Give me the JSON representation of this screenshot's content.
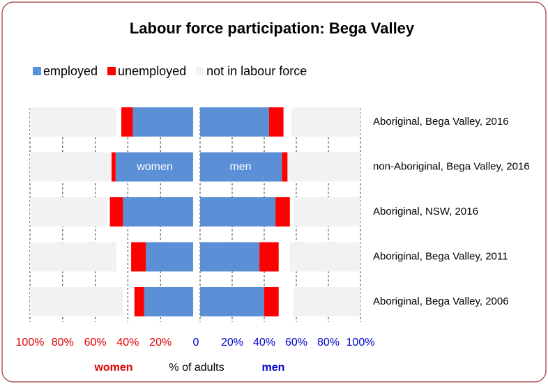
{
  "chart_data": {
    "type": "butterfly-stacked-bar",
    "title": "Labour force participation: Bega Valley",
    "categories": [
      "Aboriginal, Bega Valley, 2016",
      "non-Aboriginal, Bega Valley, 2016",
      "Aboriginal, NSW, 2016",
      "Aboriginal, Bega Valley, 2011",
      "Aboriginal, Bega Valley, 2006"
    ],
    "series": [
      {
        "name": "employed",
        "color": "#5b8fd6",
        "women": [
          37,
          47.5,
          43,
          29,
          30
        ],
        "men": [
          43,
          51,
          47,
          37,
          40
        ]
      },
      {
        "name": "unemployed",
        "color": "#ff0000",
        "women": [
          7,
          2.5,
          8,
          9,
          6
        ],
        "men": [
          9,
          3.5,
          9,
          12,
          9
        ]
      },
      {
        "name": "not in labour force",
        "color": "#f2f2f2",
        "women": [
          53,
          50,
          47,
          53,
          57
        ],
        "men": [
          43,
          45,
          42,
          44,
          42
        ]
      }
    ],
    "women_xlim": [
      100,
      0
    ],
    "men_xlim": [
      0,
      100
    ],
    "women_xticks": [
      {
        "value": 100,
        "label": "100%"
      },
      {
        "value": 80,
        "label": "80%"
      },
      {
        "value": 60,
        "label": "60%"
      },
      {
        "value": 40,
        "label": "40%"
      },
      {
        "value": 20,
        "label": "20%"
      }
    ],
    "men_xticks": [
      0,
      {
        "value": 20,
        "label": "20%"
      },
      {
        "value": 40,
        "label": "40%"
      },
      {
        "value": 60,
        "label": "60%"
      },
      {
        "value": 80,
        "label": "80%"
      },
      {
        "value": 100,
        "label": "100%"
      }
    ],
    "women_color": "#e00000",
    "men_color": "#0000cc",
    "annotations": [
      "women",
      "men"
    ],
    "x_label_women": "women",
    "x_label": "% of adults",
    "x_label_men": "men",
    "grid": true
  }
}
